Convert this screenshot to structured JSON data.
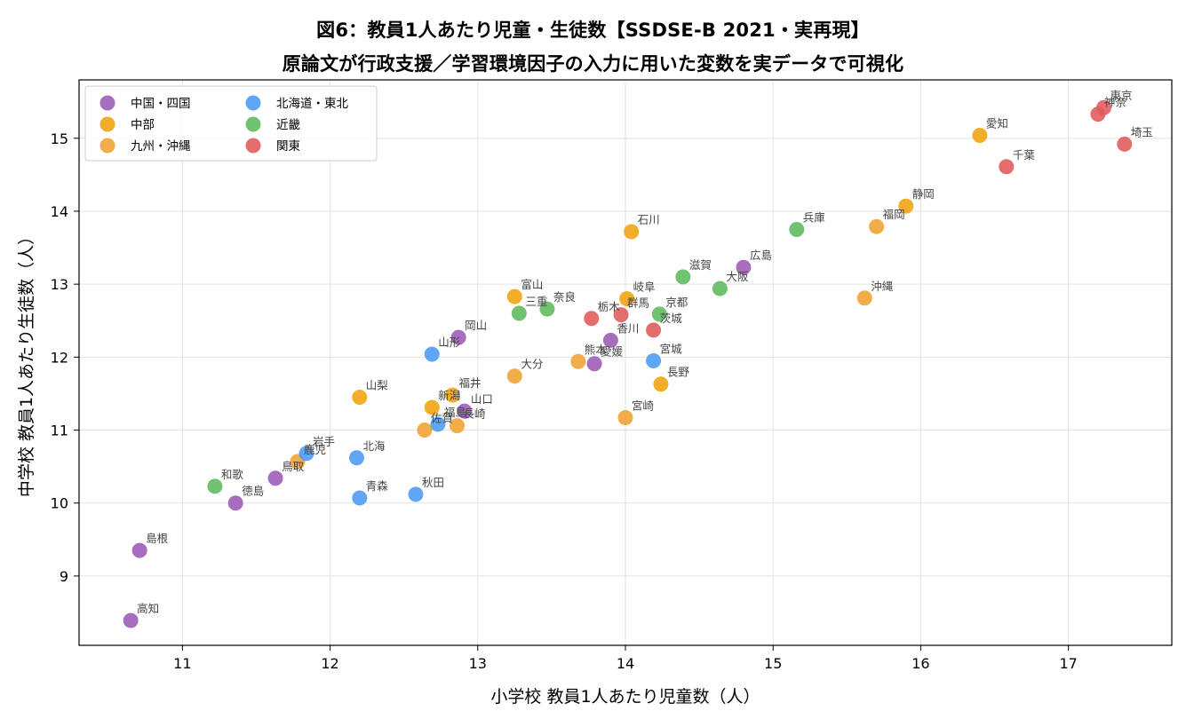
{
  "chart_data": {
    "type": "scatter",
    "title": "図6：教員1人あたり児童・生徒数【SSDSE-B 2021・実再現】",
    "subtitle": "原論文が行政支援／学習環境因子の入力に用いた変数を実データで可視化",
    "xlabel": "小学校 教員1人あたり児童数（人）",
    "ylabel": "中学校 教員1人あたり生徒数（人）",
    "xlim": [
      10.3,
      17.7
    ],
    "ylim": [
      8.05,
      15.8
    ],
    "xticks": [
      11,
      12,
      13,
      14,
      15,
      16,
      17
    ],
    "yticks": [
      9,
      10,
      11,
      12,
      13,
      14,
      15
    ],
    "grid": true,
    "legend_position": "top-left",
    "series": [
      {
        "name": "中国・四国",
        "color": "#9b59b6",
        "points": [
          {
            "label": "高知",
            "x": 10.65,
            "y": 8.39
          },
          {
            "label": "島根",
            "x": 10.71,
            "y": 9.35
          },
          {
            "label": "徳島",
            "x": 11.36,
            "y": 10.0
          },
          {
            "label": "鳥取",
            "x": 11.63,
            "y": 10.34
          },
          {
            "label": "岡山",
            "x": 12.87,
            "y": 12.27
          },
          {
            "label": "山口",
            "x": 12.91,
            "y": 11.26
          },
          {
            "label": "愛媛",
            "x": 13.79,
            "y": 11.91
          },
          {
            "label": "香川",
            "x": 13.9,
            "y": 12.23
          },
          {
            "label": "広島",
            "x": 14.8,
            "y": 13.23
          }
        ]
      },
      {
        "name": "中部",
        "color": "#f0a30a",
        "points": [
          {
            "label": "山梨",
            "x": 12.2,
            "y": 11.45
          },
          {
            "label": "新潟",
            "x": 12.69,
            "y": 11.31
          },
          {
            "label": "福井",
            "x": 12.83,
            "y": 11.48
          },
          {
            "label": "富山",
            "x": 13.25,
            "y": 12.83
          },
          {
            "label": "石川",
            "x": 14.04,
            "y": 13.72
          },
          {
            "label": "岐阜",
            "x": 14.01,
            "y": 12.8
          },
          {
            "label": "長野",
            "x": 14.24,
            "y": 11.63
          },
          {
            "label": "静岡",
            "x": 15.9,
            "y": 14.07
          },
          {
            "label": "愛知",
            "x": 16.4,
            "y": 15.04
          }
        ]
      },
      {
        "name": "九州・沖縄",
        "color": "#f0a030",
        "points": [
          {
            "label": "鹿児",
            "x": 11.78,
            "y": 10.57
          },
          {
            "label": "佐賀",
            "x": 12.64,
            "y": 11.0
          },
          {
            "label": "長崎",
            "x": 12.86,
            "y": 11.06
          },
          {
            "label": "大分",
            "x": 13.25,
            "y": 11.74
          },
          {
            "label": "熊本",
            "x": 13.68,
            "y": 11.94
          },
          {
            "label": "宮崎",
            "x": 14.0,
            "y": 11.17
          },
          {
            "label": "福岡",
            "x": 15.7,
            "y": 13.79
          },
          {
            "label": "沖縄",
            "x": 15.62,
            "y": 12.81
          }
        ]
      },
      {
        "name": "北海道・東北",
        "color": "#4a9af0",
        "points": [
          {
            "label": "岩手",
            "x": 11.84,
            "y": 10.68
          },
          {
            "label": "北海",
            "x": 12.18,
            "y": 10.62
          },
          {
            "label": "青森",
            "x": 12.2,
            "y": 10.07
          },
          {
            "label": "秋田",
            "x": 12.58,
            "y": 10.12
          },
          {
            "label": "福島",
            "x": 12.73,
            "y": 11.08
          },
          {
            "label": "山形",
            "x": 12.69,
            "y": 12.04
          },
          {
            "label": "宮城",
            "x": 14.19,
            "y": 11.95
          }
        ]
      },
      {
        "name": "近畿",
        "color": "#5cb85c",
        "points": [
          {
            "label": "和歌",
            "x": 11.22,
            "y": 10.23
          },
          {
            "label": "三重",
            "x": 13.28,
            "y": 12.6
          },
          {
            "label": "奈良",
            "x": 13.47,
            "y": 12.66
          },
          {
            "label": "京都",
            "x": 14.23,
            "y": 12.59
          },
          {
            "label": "滋賀",
            "x": 14.39,
            "y": 13.1
          },
          {
            "label": "大阪",
            "x": 14.64,
            "y": 12.94
          },
          {
            "label": "兵庫",
            "x": 15.16,
            "y": 13.75
          }
        ]
      },
      {
        "name": "関東",
        "color": "#e05a5a",
        "points": [
          {
            "label": "栃木",
            "x": 13.77,
            "y": 12.53
          },
          {
            "label": "群馬",
            "x": 13.97,
            "y": 12.58
          },
          {
            "label": "茨城",
            "x": 14.19,
            "y": 12.37
          },
          {
            "label": "千葉",
            "x": 16.58,
            "y": 14.61
          },
          {
            "label": "神奈",
            "x": 17.2,
            "y": 15.33
          },
          {
            "label": "東京",
            "x": 17.24,
            "y": 15.42
          },
          {
            "label": "埼玉",
            "x": 17.38,
            "y": 14.92
          }
        ]
      }
    ]
  }
}
